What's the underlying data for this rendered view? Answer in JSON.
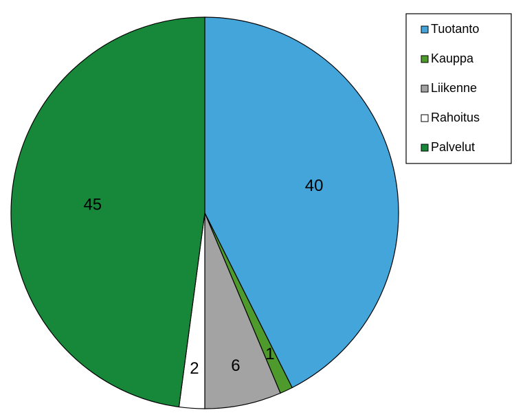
{
  "chart_data": {
    "type": "pie",
    "categories": [
      "Tuotanto",
      "Kauppa",
      "Liikenne",
      "Rahoitus",
      "Palvelut"
    ],
    "values": [
      40,
      1,
      6,
      2,
      45
    ],
    "colors": [
      "#43a5d9",
      "#4e9a2c",
      "#a3a3a3",
      "#ffffff",
      "#17873a"
    ],
    "legend": "top-right"
  }
}
